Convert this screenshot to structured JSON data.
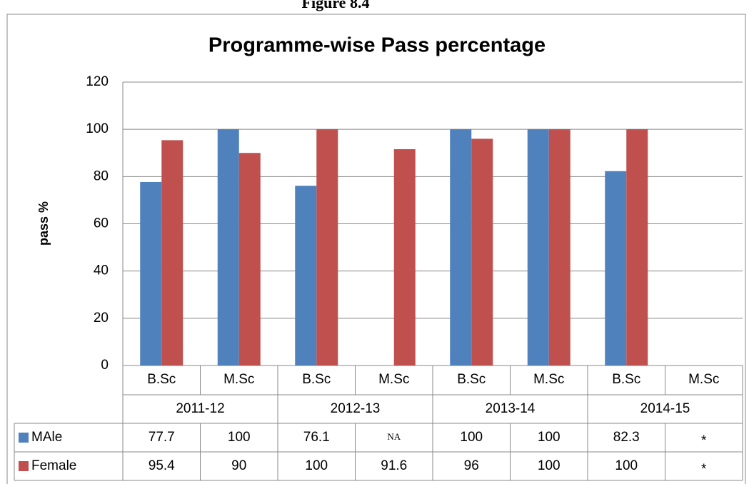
{
  "caption": "Figure 8.4",
  "chart_data": {
    "type": "bar",
    "title": "Programme-wise Pass percentage",
    "ylabel": "pass %",
    "categories": [
      "B.Sc",
      "M.Sc",
      "B.Sc",
      "M.Sc",
      "B.Sc",
      "M.Sc",
      "B.Sc",
      "M.Sc"
    ],
    "category_groups": [
      "2011-12",
      "2012-13",
      "2013-14",
      "2014-15"
    ],
    "series": [
      {
        "name": "MAle",
        "color": "#4f81bd",
        "values": [
          77.7,
          100,
          76.1,
          null,
          100,
          100,
          82.3,
          null
        ],
        "value_labels": [
          "77.7",
          "100",
          "76.1",
          "NA",
          "100",
          "100",
          "82.3",
          "*"
        ]
      },
      {
        "name": "Female",
        "color": "#c0504d",
        "values": [
          95.4,
          90,
          100,
          91.6,
          96,
          100,
          100,
          null
        ],
        "value_labels": [
          "95.4",
          "90",
          "100",
          "91.6",
          "96",
          "100",
          "100",
          "*"
        ]
      }
    ],
    "ylim": [
      0,
      120
    ],
    "yticks": [
      0,
      20,
      40,
      60,
      80,
      100,
      120
    ],
    "grid": true
  }
}
